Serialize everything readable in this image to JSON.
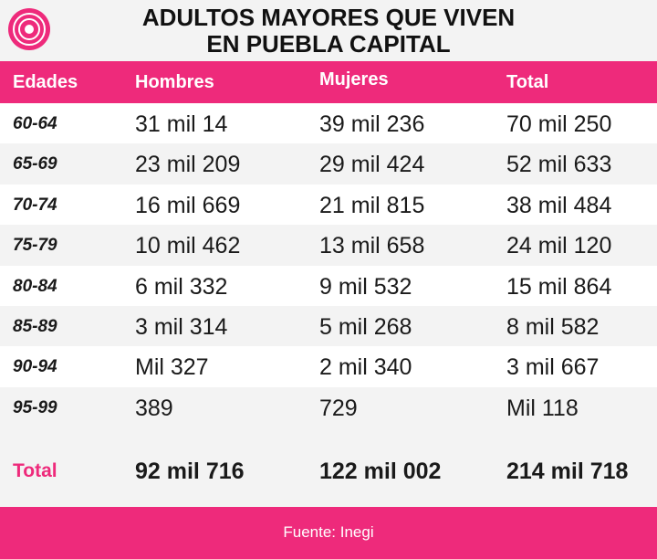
{
  "header": {
    "title_lines": [
      "ADULTOS MAYORES QUE VIVEN",
      "EN PUEBLA CAPITAL"
    ]
  },
  "table": {
    "columns": [
      "Edades",
      "Hombres",
      "Mujeres",
      "Total"
    ],
    "rows": [
      [
        "60-64",
        "31 mil 14",
        "39 mil 236",
        "70 mil 250"
      ],
      [
        "65-69",
        "23 mil 209",
        "29 mil 424",
        "52 mil 633"
      ],
      [
        "70-74",
        "16 mil 669",
        "21 mil 815",
        "38 mil 484"
      ],
      [
        "75-79",
        "10 mil 462",
        "13 mil 658",
        "24 mil 120"
      ],
      [
        "80-84",
        "6 mil 332",
        "9 mil 532",
        "15 mil 864"
      ],
      [
        "85-89",
        "3 mil 314",
        "5 mil 268",
        "8 mil 582"
      ],
      [
        "90-94",
        "Mil 327",
        "2 mil 340",
        "3 mil 667"
      ],
      [
        "95-99",
        "389",
        "729",
        "Mil 118"
      ]
    ],
    "total": [
      "Total",
      "92 mil 716",
      "122 mil 002",
      "214 mil 718"
    ]
  },
  "footer": {
    "source": "Fuente: Inegi"
  }
}
